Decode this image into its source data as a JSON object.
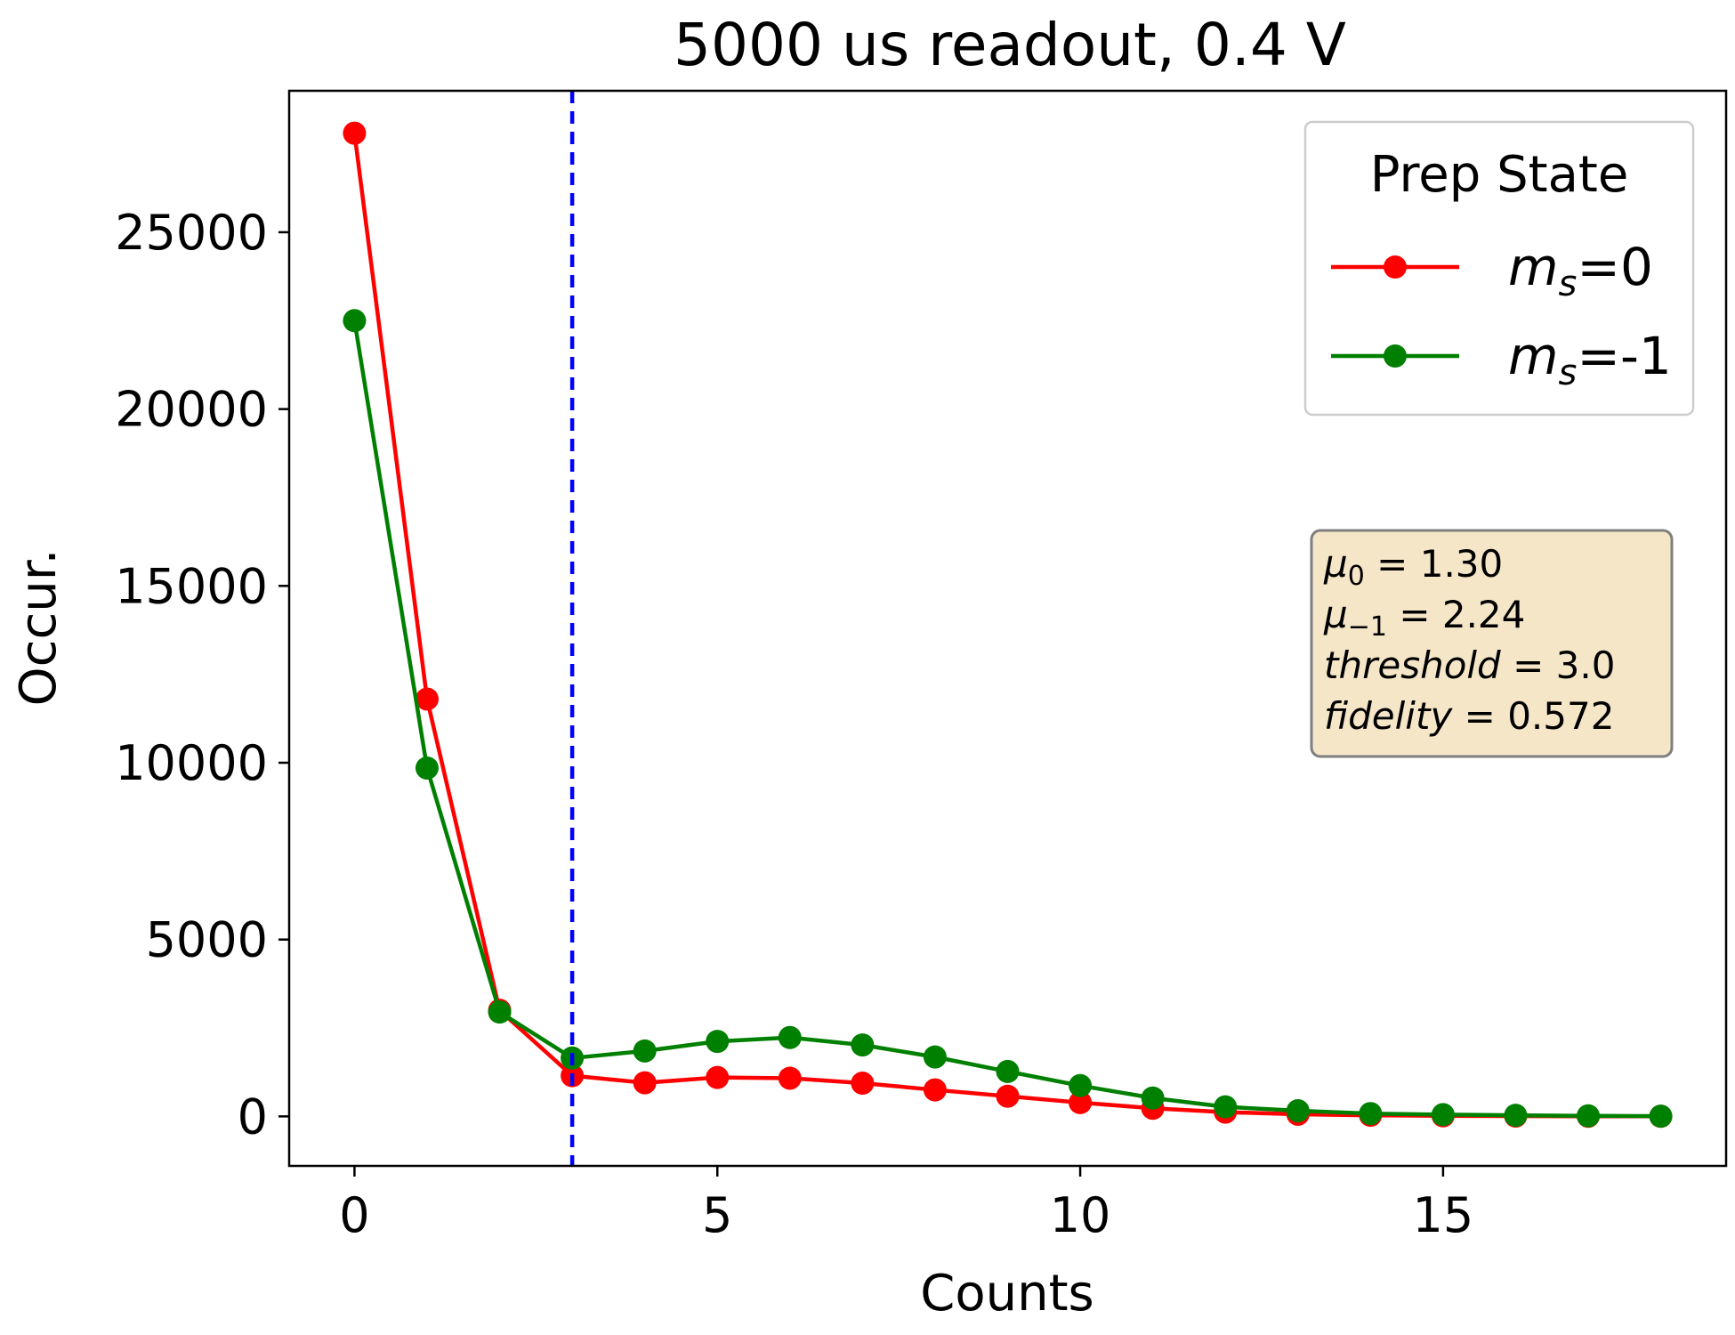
{
  "chart_data": {
    "type": "line",
    "title": "5000 us readout, 0.4 V",
    "xlabel": "Counts",
    "ylabel": "Occur.",
    "xlim": [
      -0.9,
      18.9
    ],
    "ylim": [
      -1400,
      29000
    ],
    "xticks": [
      0,
      5,
      10,
      15
    ],
    "yticks": [
      0,
      5000,
      10000,
      15000,
      20000,
      25000
    ],
    "grid": false,
    "x": [
      0,
      1,
      2,
      3,
      4,
      5,
      6,
      7,
      8,
      9,
      10,
      11,
      12,
      13,
      14,
      15,
      16,
      17,
      18
    ],
    "series": [
      {
        "name_base": "m",
        "name_sub": "s",
        "name_suffix": "=0",
        "color": "#ff0000",
        "values": [
          27800,
          11800,
          3000,
          1150,
          950,
          1100,
          1080,
          940,
          750,
          570,
          390,
          230,
          120,
          60,
          30,
          15,
          8,
          4,
          2
        ]
      },
      {
        "name_base": "m",
        "name_sub": "s",
        "name_suffix": "=-1",
        "color": "#008000",
        "values": [
          22500,
          9850,
          2950,
          1650,
          1850,
          2120,
          2230,
          2020,
          1680,
          1270,
          870,
          520,
          270,
          160,
          80,
          50,
          30,
          15,
          5
        ]
      }
    ],
    "threshold_line": {
      "x": 3,
      "color": "#0000ff",
      "style": "dashed"
    },
    "legend": {
      "title": "Prep State",
      "placement": "top-right"
    },
    "annotation": {
      "placement": "right",
      "background": "#f5e6c8",
      "lines": [
        {
          "sym": "μ",
          "sub": "0",
          "eq": " = 1.30"
        },
        {
          "sym": "μ",
          "sub": "−1",
          "eq": " = 2.24"
        },
        {
          "sym": "threshold",
          "sub": "",
          "eq": " = 3.0"
        },
        {
          "sym": "fidelity",
          "sub": "",
          "eq": " = 0.572"
        }
      ]
    }
  }
}
